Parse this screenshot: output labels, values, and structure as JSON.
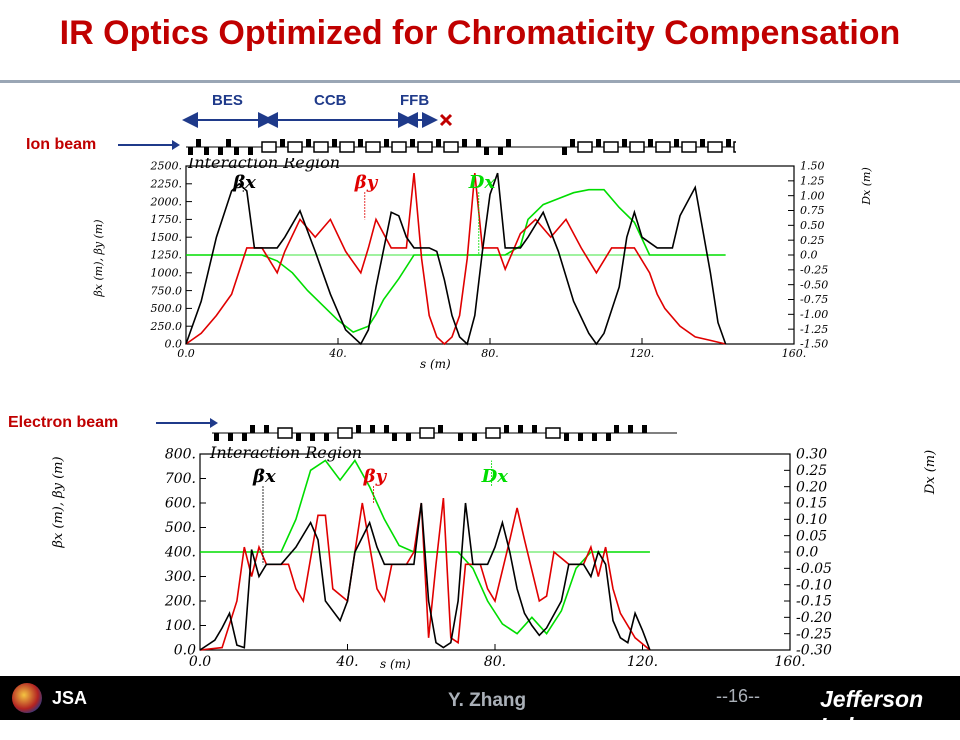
{
  "title": "IR Optics Optimized for Chromaticity Compensation",
  "segments": {
    "bes": "BES",
    "ccb": "CCB",
    "ffb": "FFB"
  },
  "beam_labels": {
    "ion": "Ion beam",
    "electron": "Electron beam"
  },
  "footer": {
    "author": "Y. Zhang",
    "page": "--16--",
    "lab": "Jefferson Lab",
    "logo_text": "JSA"
  },
  "colors": {
    "title": "#c00000",
    "beta_x": "#000000",
    "beta_y": "#e00000",
    "dispersion": "#00dd00",
    "arrows": "#1f3a8a"
  },
  "chart_data": [
    {
      "type": "line",
      "beam": "Ion beam",
      "title": "Interaction Region",
      "xlabel": "s (m)",
      "ylabel": "βx (m), βy (m)",
      "y2label": "Dx (m)",
      "xlim": [
        0,
        160
      ],
      "ylim": [
        0,
        2500
      ],
      "y2lim": [
        -1.5,
        1.5
      ],
      "xticks": [
        "0.0",
        "40.",
        "80.",
        "120.",
        "160."
      ],
      "yticks": [
        "0.0",
        "250.0",
        "500.0",
        "750.0",
        "1000.",
        "1250.",
        "1500.",
        "1750.",
        "2000.",
        "2250.",
        "2500."
      ],
      "y2ticks": [
        "1.50",
        "1.25",
        "1.00",
        "0.75",
        "0.50",
        "0.25",
        "0.0",
        "-0.25",
        "-0.50",
        "-0.75",
        "-1.00",
        "-1.25",
        "-1.50"
      ],
      "series": [
        {
          "name": "βx",
          "axis": "left",
          "x": [
            0,
            4,
            8,
            12,
            14,
            16,
            18,
            20,
            24,
            26,
            30,
            34,
            38,
            42,
            46,
            48,
            50,
            54,
            56,
            58,
            60,
            62,
            64,
            66,
            68,
            70,
            72,
            74,
            76,
            78,
            80,
            82,
            84,
            86,
            88,
            90,
            94,
            98,
            102,
            106,
            108,
            110,
            114,
            116,
            118,
            120,
            124,
            126,
            128,
            130,
            134,
            138,
            140,
            142
          ],
          "y": [
            0,
            600,
            1500,
            2150,
            2250,
            2150,
            1350,
            1350,
            1350,
            1500,
            1870,
            1300,
            700,
            200,
            0,
            200,
            800,
            1850,
            1800,
            1500,
            1350,
            1350,
            1350,
            1300,
            900,
            400,
            100,
            0,
            400,
            1300,
            2100,
            2400,
            1350,
            1350,
            1350,
            1500,
            1850,
            1300,
            600,
            150,
            0,
            150,
            800,
            1500,
            1850,
            1500,
            1350,
            1350,
            1350,
            1800,
            2200,
            1000,
            300,
            0
          ]
        },
        {
          "name": "βy",
          "axis": "left",
          "x": [
            0,
            4,
            8,
            12,
            16,
            18,
            20,
            24,
            26,
            30,
            34,
            38,
            42,
            46,
            48,
            50,
            54,
            56,
            58,
            60,
            62,
            64,
            66,
            68,
            70,
            72,
            74,
            76,
            78,
            80,
            82,
            84,
            88,
            92,
            96,
            100,
            104,
            108,
            112,
            114,
            118,
            122,
            124,
            126,
            130,
            134,
            138,
            142
          ],
          "y": [
            0,
            150,
            400,
            700,
            1350,
            1350,
            1350,
            1000,
            1300,
            1750,
            1500,
            1750,
            1300,
            1000,
            1350,
            1750,
            1350,
            1350,
            1350,
            2400,
            1200,
            400,
            100,
            0,
            100,
            400,
            1200,
            2400,
            1350,
            1350,
            1350,
            1050,
            1550,
            1750,
            1500,
            1750,
            1350,
            1000,
            1350,
            1350,
            1350,
            1000,
            700,
            500,
            250,
            100,
            50,
            0
          ]
        },
        {
          "name": "Dx",
          "axis": "right",
          "x": [
            0,
            16,
            20,
            24,
            28,
            32,
            36,
            40,
            44,
            48,
            50,
            52,
            56,
            60,
            64,
            68,
            72,
            76,
            80,
            84,
            88,
            90,
            94,
            98,
            102,
            106,
            110,
            114,
            118,
            122,
            130,
            142
          ],
          "y": [
            0,
            0,
            0,
            -0.1,
            -0.3,
            -0.6,
            -0.85,
            -1.1,
            -1.3,
            -1.2,
            -1.0,
            -0.75,
            -0.4,
            0,
            0,
            0,
            0,
            0,
            0,
            0,
            0.15,
            0.6,
            0.85,
            0.95,
            1.05,
            1.1,
            1.1,
            0.8,
            0.55,
            0,
            0,
            0
          ]
        }
      ]
    },
    {
      "type": "line",
      "beam": "Electron beam",
      "title": "Interaction Region",
      "xlabel": "s (m)",
      "ylabel": "βx (m), βy (m)",
      "y2label": "Dx (m)",
      "xlim": [
        0,
        160
      ],
      "ylim": [
        0,
        800
      ],
      "y2lim": [
        -0.3,
        0.3
      ],
      "xticks": [
        "0.0",
        "40.",
        "80.",
        "120.",
        "160."
      ],
      "yticks": [
        "0.0",
        "100.",
        "200.",
        "300.",
        "400.",
        "500.",
        "600.",
        "700.",
        "800."
      ],
      "y2ticks": [
        "0.30",
        "0.25",
        "0.20",
        "0.15",
        "0.10",
        "0.05",
        "0.0",
        "-0.05",
        "-0.10",
        "-0.15",
        "-0.20",
        "-0.25",
        "-0.30"
      ],
      "series": [
        {
          "name": "βx",
          "axis": "left",
          "x": [
            0,
            4,
            6,
            8,
            10,
            12,
            14,
            16,
            18,
            20,
            22,
            26,
            30,
            32,
            34,
            38,
            40,
            42,
            46,
            48,
            50,
            54,
            56,
            58,
            60,
            62,
            64,
            66,
            68,
            70,
            72,
            74,
            76,
            78,
            80,
            82,
            84,
            86,
            88,
            90,
            92,
            94,
            98,
            100,
            102,
            104,
            106,
            108,
            110,
            112,
            114,
            116,
            118,
            120,
            122
          ],
          "y": [
            0,
            40,
            90,
            150,
            20,
            10,
            410,
            300,
            350,
            350,
            350,
            420,
            520,
            450,
            200,
            120,
            200,
            400,
            520,
            420,
            350,
            350,
            350,
            350,
            600,
            200,
            30,
            10,
            30,
            200,
            600,
            350,
            350,
            350,
            420,
            520,
            400,
            250,
            150,
            100,
            60,
            90,
            200,
            350,
            350,
            350,
            300,
            400,
            350,
            120,
            50,
            30,
            150,
            80,
            0
          ]
        },
        {
          "name": "βy",
          "axis": "left",
          "x": [
            0,
            6,
            10,
            12,
            14,
            16,
            18,
            20,
            24,
            26,
            28,
            32,
            34,
            36,
            40,
            42,
            44,
            48,
            50,
            52,
            56,
            58,
            60,
            62,
            64,
            66,
            68,
            70,
            72,
            76,
            78,
            80,
            84,
            86,
            88,
            92,
            94,
            96,
            100,
            102,
            104,
            106,
            108,
            110,
            112,
            114,
            118,
            122
          ],
          "y": [
            0,
            10,
            200,
            420,
            300,
            420,
            350,
            350,
            350,
            250,
            200,
            550,
            550,
            250,
            200,
            400,
            600,
            250,
            200,
            350,
            350,
            400,
            600,
            50,
            350,
            620,
            50,
            30,
            350,
            350,
            250,
            200,
            450,
            580,
            450,
            200,
            220,
            400,
            350,
            350,
            350,
            420,
            300,
            420,
            250,
            150,
            50,
            0
          ]
        },
        {
          "name": "Dx",
          "axis": "right",
          "x": [
            0,
            18,
            22,
            26,
            30,
            34,
            38,
            42,
            46,
            50,
            54,
            58,
            62,
            66,
            70,
            74,
            78,
            82,
            86,
            90,
            94,
            98,
            102,
            106,
            110,
            114,
            118,
            122
          ],
          "y": [
            0,
            0,
            0,
            0.1,
            0.25,
            0.28,
            0.22,
            0.28,
            0.2,
            0.1,
            0.02,
            0,
            0,
            0,
            0,
            -0.05,
            -0.15,
            -0.22,
            -0.25,
            -0.2,
            -0.25,
            -0.18,
            -0.05,
            0,
            0,
            0,
            0,
            0
          ]
        }
      ]
    }
  ]
}
